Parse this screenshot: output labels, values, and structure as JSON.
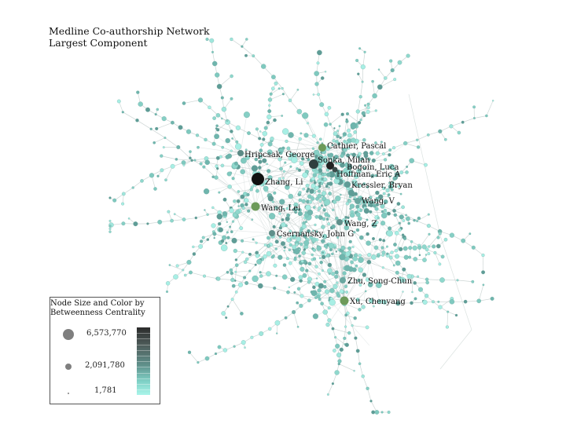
{
  "title": {
    "line1": "Medline Co-authorship Network",
    "line2": "Largest Component"
  },
  "labels": [
    {
      "text": "Cathier, Pascal"
    },
    {
      "text": "Hripcsak, George"
    },
    {
      "text": "Sonka, Milan"
    },
    {
      "text": "Bogoin, Luca"
    },
    {
      "text": "Hoffman, Eric A"
    },
    {
      "text": "Zhang, Li"
    },
    {
      "text": "Kressler, Bryan"
    },
    {
      "text": "Wang, V"
    },
    {
      "text": "Wang, Lei"
    },
    {
      "text": "Wang, Z"
    },
    {
      "text": "Csernansky, John G"
    },
    {
      "text": "Zhu, Song-Chun"
    },
    {
      "text": "Xu, Chenyang"
    }
  ],
  "legend": {
    "title_line1": "Node Size and Color by",
    "title_line2": "Betweenness Centrality",
    "values": [
      "6,573,770",
      "2,091,780",
      "1,781"
    ]
  },
  "colors": {
    "edge": "#c9d3d1",
    "node_low": "#9fe6dc",
    "node_mid": "#5f9c96",
    "node_high": "#1b1b1b",
    "highlight_green": "#6d9a5a"
  }
}
